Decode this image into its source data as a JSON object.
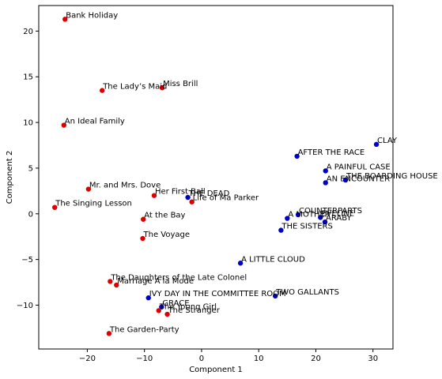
{
  "chart_data": {
    "type": "scatter",
    "xlabel": "Component 1",
    "ylabel": "Component 2",
    "xlim": [
      -28.5,
      33.5
    ],
    "ylim": [
      -14.8,
      22.8
    ],
    "xticks": [
      -20,
      -10,
      0,
      10,
      20,
      30
    ],
    "yticks": [
      -10,
      -5,
      0,
      5,
      10,
      15,
      20
    ],
    "grid": false,
    "series": [
      {
        "color": "#0000cc",
        "points": [
          {
            "x": 30.6,
            "y": 7.6,
            "label": "CLAY"
          },
          {
            "x": 16.7,
            "y": 6.3,
            "label": "AFTER THE RACE"
          },
          {
            "x": 21.7,
            "y": 4.7,
            "label": "A PAINFUL CASE"
          },
          {
            "x": 25.2,
            "y": 3.7,
            "label": "THE BOARDING HOUSE"
          },
          {
            "x": 21.7,
            "y": 3.4,
            "label": "AN ENCOUNTER"
          },
          {
            "x": -2.4,
            "y": 1.8,
            "label": "THE DEAD"
          },
          {
            "x": 16.9,
            "y": -0.1,
            "label": "COUNTERPARTS"
          },
          {
            "x": 15.0,
            "y": -0.5,
            "label": "A MOTHER"
          },
          {
            "x": 20.8,
            "y": -0.4,
            "label": "EVELINE"
          },
          {
            "x": 21.6,
            "y": -0.9,
            "label": "ARABY"
          },
          {
            "x": 13.9,
            "y": -1.8,
            "label": "THE SISTERS"
          },
          {
            "x": 6.8,
            "y": -5.4,
            "label": "A LITTLE CLOUD"
          },
          {
            "x": 12.9,
            "y": -9.0,
            "label": "TWO GALLANTS"
          },
          {
            "x": -9.3,
            "y": -9.2,
            "label": "IVY DAY IN THE COMMITTEE ROOM"
          },
          {
            "x": -7.0,
            "y": -10.2,
            "label": "GRACE"
          }
        ]
      },
      {
        "color": "#dd0000",
        "points": [
          {
            "x": -23.9,
            "y": 21.3,
            "label": "Bank Holiday"
          },
          {
            "x": -17.4,
            "y": 13.5,
            "label": "The Lady’s Maid"
          },
          {
            "x": -6.9,
            "y": 13.8,
            "label": "Miss Brill"
          },
          {
            "x": -24.1,
            "y": 9.7,
            "label": "An Ideal Family"
          },
          {
            "x": -19.8,
            "y": 2.7,
            "label": "Mr. and Mrs. Dove"
          },
          {
            "x": -8.3,
            "y": 2.0,
            "label": "Her First Ball"
          },
          {
            "x": -1.7,
            "y": 1.3,
            "label": "Life of Ma Parker"
          },
          {
            "x": -25.7,
            "y": 0.7,
            "label": "The Singing Lesson"
          },
          {
            "x": -10.2,
            "y": -0.6,
            "label": "At the Bay"
          },
          {
            "x": -10.3,
            "y": -2.7,
            "label": "The Voyage"
          },
          {
            "x": -16.0,
            "y": -7.4,
            "label": "The Daughters of the Late Colonel"
          },
          {
            "x": -14.9,
            "y": -7.8,
            "label": "Marriage A  la Mode"
          },
          {
            "x": -7.5,
            "y": -10.6,
            "label": "The Young Girl"
          },
          {
            "x": -6.0,
            "y": -11.0,
            "label": "The Stranger"
          },
          {
            "x": -16.2,
            "y": -13.1,
            "label": "The Garden-Party"
          }
        ]
      }
    ]
  }
}
